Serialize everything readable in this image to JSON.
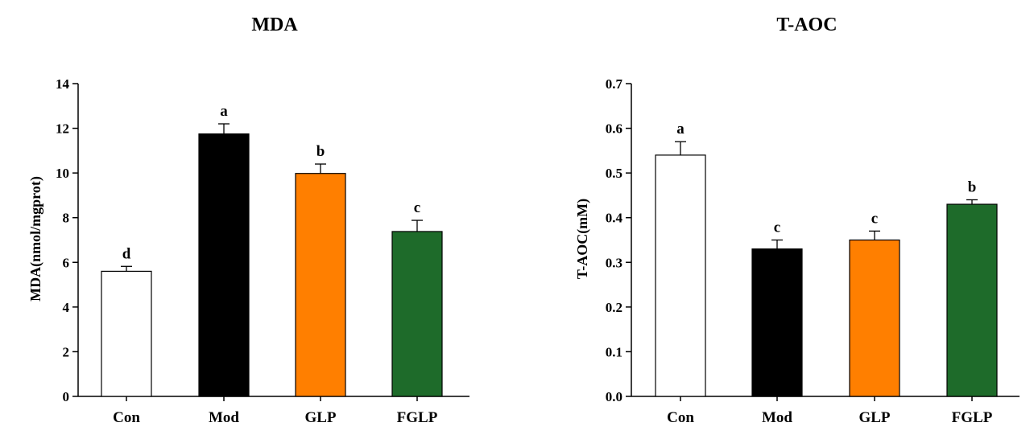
{
  "chart_data": [
    {
      "type": "bar",
      "title": "MDA",
      "ylabel": "MDA(nmol/mgprot)",
      "xlabel": "",
      "categories": [
        "Con",
        "Mod",
        "GLP",
        "FGLP"
      ],
      "values": [
        5.6,
        11.75,
        9.98,
        7.38
      ],
      "errors": [
        0.22,
        0.45,
        0.42,
        0.5
      ],
      "significance": [
        "d",
        "a",
        "b",
        "c"
      ],
      "bar_colors": [
        "#ffffff",
        "#000000",
        "#ff7f00",
        "#1e6b2a"
      ],
      "ylim": [
        0,
        14
      ],
      "yticks": [
        "0",
        "2",
        "4",
        "6",
        "8",
        "10",
        "12",
        "14"
      ],
      "ytick_values": [
        0,
        2,
        4,
        6,
        8,
        10,
        12,
        14
      ],
      "grid": false,
      "legend": "none"
    },
    {
      "type": "bar",
      "title": "T-AOC",
      "ylabel": "T-AOC(mM)",
      "xlabel": "",
      "categories": [
        "Con",
        "Mod",
        "GLP",
        "FGLP"
      ],
      "values": [
        0.54,
        0.33,
        0.35,
        0.43
      ],
      "errors": [
        0.03,
        0.02,
        0.02,
        0.01
      ],
      "significance": [
        "a",
        "c",
        "c",
        "b"
      ],
      "bar_colors": [
        "#ffffff",
        "#000000",
        "#ff7f00",
        "#1e6b2a"
      ],
      "ylim": [
        0,
        0.7
      ],
      "yticks": [
        "0.0",
        "0.1",
        "0.2",
        "0.3",
        "0.4",
        "0.5",
        "0.6",
        "0.7"
      ],
      "ytick_values": [
        0,
        0.1,
        0.2,
        0.3,
        0.4,
        0.5,
        0.6,
        0.7
      ],
      "grid": false,
      "legend": "none"
    }
  ]
}
